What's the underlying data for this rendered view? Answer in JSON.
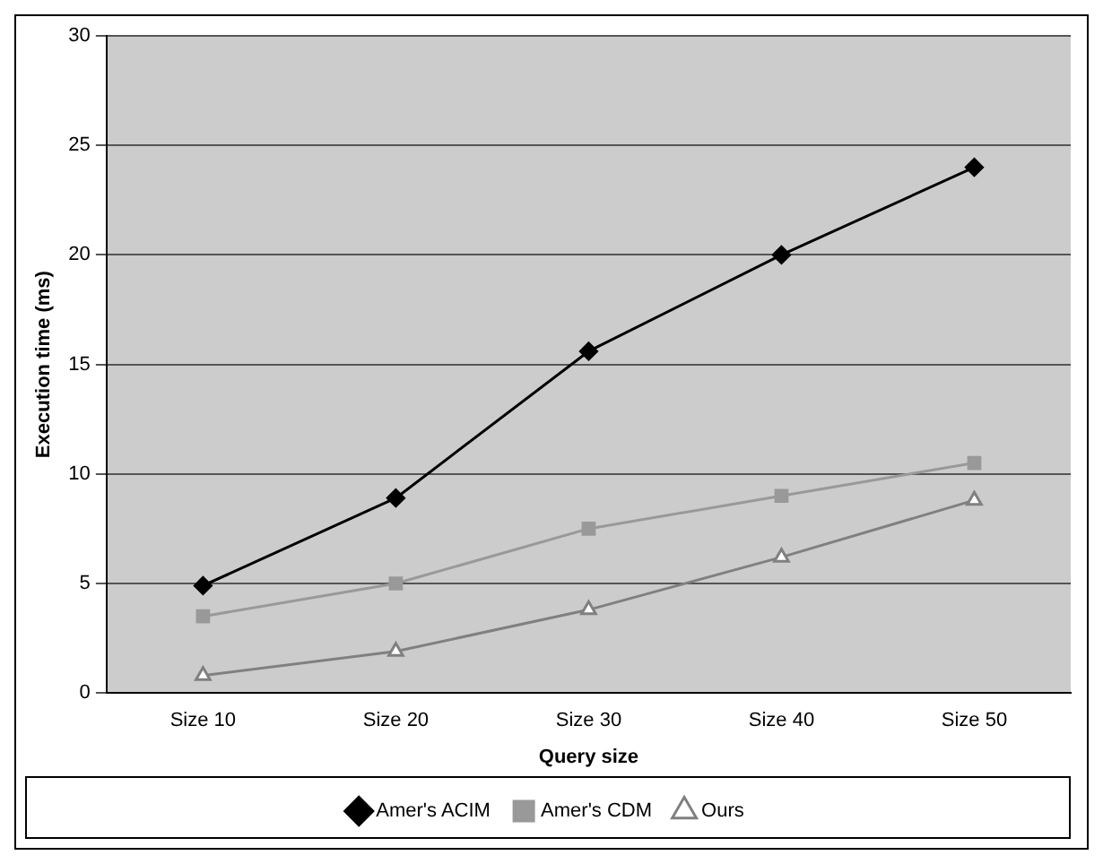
{
  "chart_data": {
    "type": "line",
    "xlabel": "Query size",
    "ylabel": "Execution time (ms)",
    "categories": [
      "Size 10",
      "Size 20",
      "Size 30",
      "Size 40",
      "Size 50"
    ],
    "series": [
      {
        "name": "Amer's ACIM",
        "color": "#000000",
        "marker": "diamond",
        "values": [
          4.9,
          8.9,
          15.6,
          20,
          24
        ]
      },
      {
        "name": "Amer's CDM",
        "color": "#999999",
        "marker": "square",
        "values": [
          3.5,
          5,
          7.5,
          9,
          10.5
        ]
      },
      {
        "name": "Ours",
        "color": "#808080",
        "marker": "triangle",
        "values": [
          0.8,
          1.9,
          3.8,
          6.2,
          8.8
        ]
      }
    ],
    "ylim": [
      0,
      30
    ],
    "yticks": [
      0,
      5,
      10,
      15,
      20,
      25,
      30
    ],
    "grid": "y",
    "legend": "bottom",
    "line_style": "solid"
  }
}
